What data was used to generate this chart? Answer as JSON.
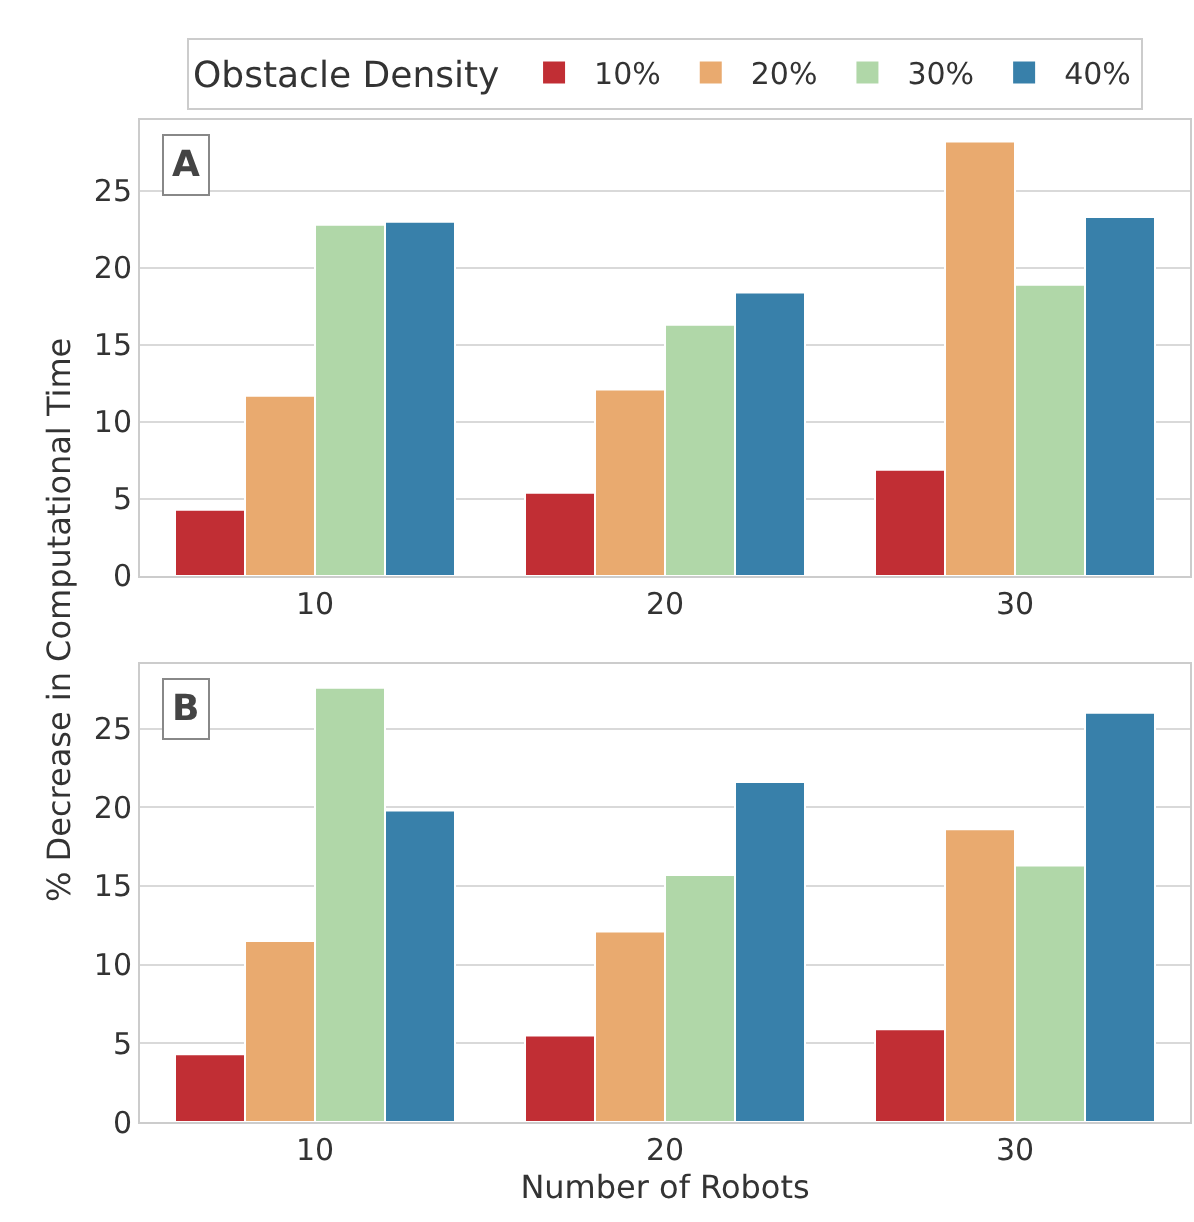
{
  "chart_data": [
    {
      "type": "bar",
      "categories": [
        "10",
        "20",
        "30"
      ],
      "legend_title": "Obstacle Density",
      "legend": "top",
      "grid": "y",
      "ylim": [
        0,
        29.6
      ],
      "yticks": [
        0,
        5,
        10,
        15,
        20,
        25
      ],
      "annotations": [
        "A"
      ],
      "series": [
        {
          "name": "10%",
          "color": "#c12e34",
          "values": [
            4.3,
            5.4,
            6.9
          ]
        },
        {
          "name": "20%",
          "color": "#e9aa6f",
          "values": [
            11.7,
            12.1,
            28.2
          ]
        },
        {
          "name": "30%",
          "color": "#b0d7a8",
          "values": [
            22.8,
            16.3,
            18.9
          ]
        },
        {
          "name": "40%",
          "color": "#3880aa",
          "values": [
            23.0,
            18.4,
            23.3
          ]
        }
      ]
    },
    {
      "type": "bar",
      "categories": [
        "10",
        "20",
        "30"
      ],
      "xlabel": "Number of Robots",
      "ylabel": "% Decrease in Computational Time",
      "grid": "y",
      "ylim": [
        0,
        29.1
      ],
      "yticks": [
        0,
        5,
        10,
        15,
        20,
        25
      ],
      "annotations": [
        "B"
      ],
      "series": [
        {
          "color": "#c12e34",
          "values": [
            4.3,
            5.5,
            5.9
          ]
        },
        {
          "color": "#e9aa6f",
          "values": [
            11.5,
            12.1,
            18.6
          ]
        },
        {
          "color": "#b0d7a8",
          "values": [
            27.6,
            15.7,
            16.3
          ]
        },
        {
          "color": "#3880aa",
          "values": [
            19.8,
            21.6,
            26.0
          ]
        }
      ]
    }
  ]
}
